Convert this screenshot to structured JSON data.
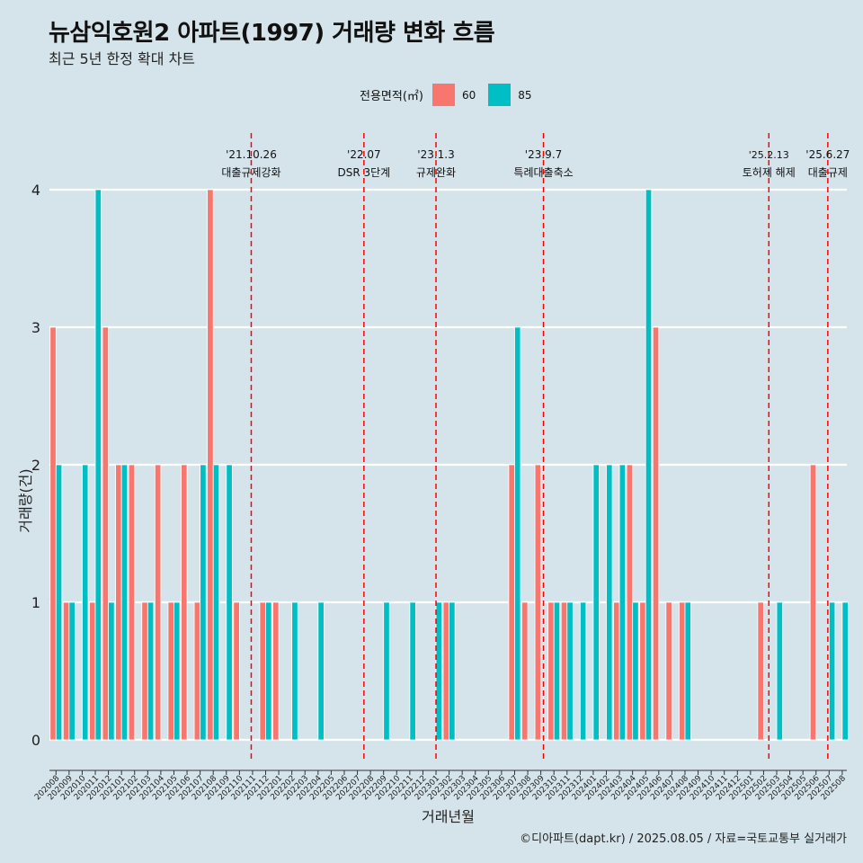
{
  "chart_data": {
    "type": "bar",
    "title": "뉴삼익호원2 아파트(1997) 거래량 변화 흐름",
    "subtitle": "최근 5년 한정 확대 차트",
    "xlabel": "거래년월",
    "ylabel": "거래량(건)",
    "ylim": [
      0,
      4
    ],
    "yticks": [
      0,
      1,
      2,
      3,
      4
    ],
    "legend": {
      "title": "전용면적(㎡)",
      "position": "top"
    },
    "caption": "©디아파트(dapt.kr) / 2025.08.05 / 자료=국토교통부 실거래가",
    "colors": {
      "60": "#f8766d",
      "85": "#00bfc4",
      "background": "#d5e4eb",
      "event_line": "#ff0000"
    },
    "categories": [
      "202008",
      "202009",
      "202010",
      "202011",
      "202012",
      "202101",
      "202102",
      "202103",
      "202104",
      "202105",
      "202106",
      "202107",
      "202108",
      "202109",
      "202110",
      "202111",
      "202112",
      "202201",
      "202202",
      "202203",
      "202204",
      "202205",
      "202206",
      "202207",
      "202208",
      "202209",
      "202210",
      "202211",
      "202212",
      "202301",
      "202302",
      "202303",
      "202304",
      "202305",
      "202306",
      "202307",
      "202308",
      "202309",
      "202310",
      "202311",
      "202312",
      "202401",
      "202402",
      "202403",
      "202404",
      "202405",
      "202406",
      "202407",
      "202408",
      "202409",
      "202410",
      "202411",
      "202412",
      "202501",
      "202502",
      "202503",
      "202504",
      "202505",
      "202506",
      "202507",
      "202508"
    ],
    "series": [
      {
        "name": "60",
        "values": [
          3,
          1,
          0,
          1,
          3,
          2,
          2,
          1,
          2,
          1,
          2,
          1,
          4,
          0,
          1,
          0,
          1,
          1,
          0,
          0,
          0,
          0,
          0,
          0,
          0,
          0,
          0,
          0,
          0,
          0,
          1,
          0,
          0,
          0,
          0,
          2,
          1,
          2,
          1,
          1,
          0,
          0,
          0,
          1,
          2,
          1,
          3,
          1,
          1,
          0,
          0,
          0,
          0,
          0,
          1,
          0,
          0,
          0,
          2,
          0,
          0
        ]
      },
      {
        "name": "85",
        "values": [
          2,
          1,
          2,
          4,
          1,
          2,
          0,
          1,
          0,
          1,
          0,
          2,
          2,
          2,
          0,
          0,
          1,
          0,
          1,
          0,
          1,
          0,
          0,
          0,
          0,
          1,
          0,
          1,
          0,
          1,
          1,
          0,
          0,
          0,
          0,
          3,
          0,
          0,
          1,
          1,
          1,
          2,
          2,
          2,
          1,
          4,
          0,
          0,
          1,
          0,
          0,
          0,
          0,
          0,
          0,
          1,
          0,
          0,
          0,
          1,
          1
        ]
      }
    ],
    "events": [
      {
        "date": "'21.10.26",
        "label": "대출규제강화",
        "x": 202110.9
      },
      {
        "date": "'22.07",
        "label": "DSR 3단계",
        "x": 202207.5
      },
      {
        "date": "'23.1.3",
        "label": "규제완화",
        "x": 202301.0
      },
      {
        "date": "'23.9.7",
        "label": "특례대출축소",
        "x": 202309.2
      },
      {
        "date": "'25.2.13",
        "label": "토허제 해제",
        "x": 202502.4
      },
      {
        "date": "'25.6.27",
        "label": "대출규제",
        "x": 202506.9
      }
    ]
  }
}
